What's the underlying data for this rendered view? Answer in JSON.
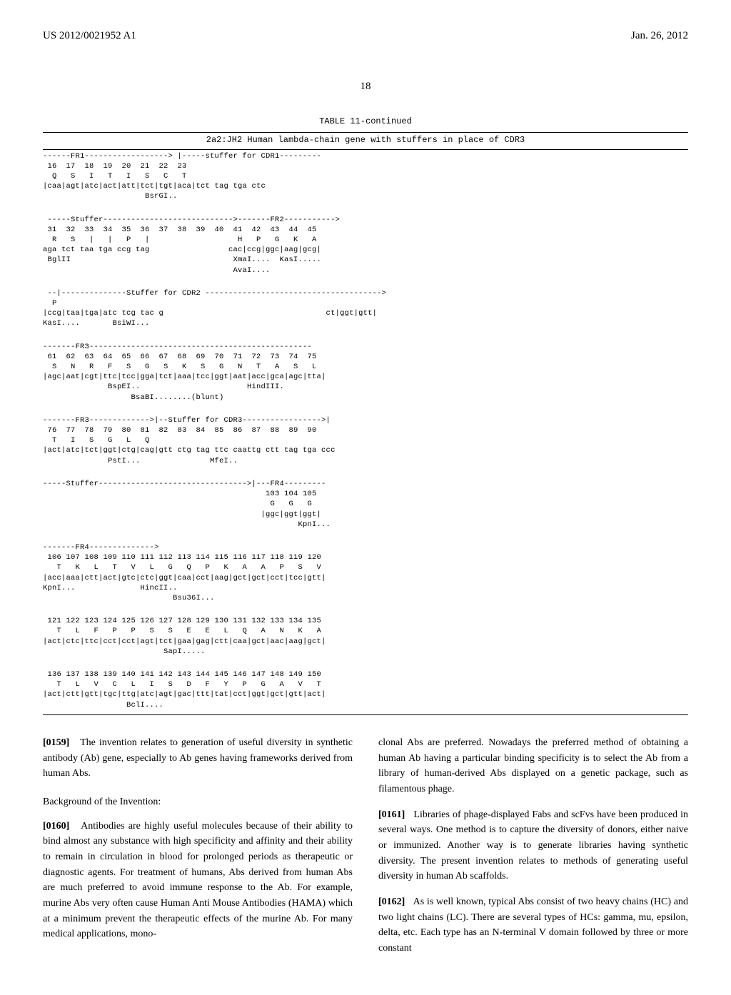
{
  "header": {
    "pub_number": "US 2012/0021952 A1",
    "pub_date": "Jan. 26, 2012"
  },
  "page_number": "18",
  "table": {
    "caption": "TABLE 11-continued",
    "subtitle": "2a2:JH2 Human lambda-chain gene with stuffers in place of CDR3"
  },
  "seq_blocks": [
    "------FR1------------------> |-----stuffer for CDR1---------\n 16  17  18  19  20  21  22  23\n  Q   S   I   T   I   S   C   T\n|caa|agt|atc|act|att|tct|tgt|aca|tct tag tga ctc\n                      BsrGI..",
    " -----Stuffer---------------------------->-------FR2----------->\n 31  32  33  34  35  36  37  38  39  40  41  42  43  44  45\n  R   S   |   |   P   |                   H   P   G   K   A\naga tct taa tga ccg tag                 cac|ccg|ggc|aag|gcg|\n BglII                                   XmaI....  KasI.....\n                                         AvaI....",
    " --|--------------Stuffer for CDR2 -------------------------------------->\n  P\n|ccg|taa|tga|atc tcg tac g                                   ct|ggt|gtt|\nKasI....       BsiWI...",
    "-------FR3------------------------------------------------\n 61  62  63  64  65  66  67  68  69  70  71  72  73  74  75\n  S   N   R   F   S   G   S   K   S   G   N   T   A   S   L\n|agc|aat|cgt|ttc|tcc|gga|tct|aaa|tcc|ggt|aat|acc|gca|agc|tta|\n              BspEI..                       HindIII.\n                   BsaBI........(blunt)",
    "-------FR3------------->|--Stuffer for CDR3----------------->|\n 76  77  78  79  80  81  82  83  84  85  86  87  88  89  90\n  T   I   S   G   L   Q\n|act|atc|tct|ggt|ctg|cag|gtt ctg tag ttc caattg ctt tag tga ccc\n              PstI...               MfeI..",
    "-----Stuffer-------------------------------->|---FR4---------\n                                                103 104 105\n                                                 G   G   G\n                                               |ggc|ggt|ggt|\n                                                       KpnI...",
    "-------FR4-------------->\n 106 107 108 109 110 111 112 113 114 115 116 117 118 119 120\n   T   K   L   T   V   L   G   Q   P   K   A   A   P   S   V\n|acc|aaa|ctt|act|gtc|ctc|ggt|caa|cct|aag|gct|gct|cct|tcc|gtt|\nKpnI...              HincII..\n                            Bsu36I...",
    " 121 122 123 124 125 126 127 128 129 130 131 132 133 134 135\n   T   L   F   P   P   S   S   E   E   L   Q   A   N   K   A\n|act|ctc|ttc|cct|cct|agt|tct|gaa|gag|ctt|caa|gct|aac|aag|gct|\n                          SapI.....",
    " 136 137 138 139 140 141 142 143 144 145 146 147 148 149 150\n   T   L   V   C   L   I   S   D   F   Y   P   G   A   V   T\n|act|ctt|gtt|tgc|ttg|atc|agt|gac|ttt|tat|cct|ggt|gct|gtt|act|\n                  BclI...."
  ],
  "left_column": {
    "p159_num": "[0159]",
    "p159": "   The invention relates to generation of useful diversity in synthetic antibody (Ab) gene, especially to Ab genes having frameworks derived from human Abs.",
    "bg_heading": "Background of the Invention:",
    "p160_num": "[0160]",
    "p160": "   Antibodies are highly useful molecules because of their ability to bind almost any substance with high specificity and affinity and their ability to remain in circulation in blood for prolonged periods as therapeutic or diagnostic agents. For treatment of humans, Abs derived from human Abs are much preferred to avoid immune response to the Ab. For example, murine Abs very often cause Human Anti Mouse Antibodies (HAMA) which at a minimum prevent the therapeutic effects of the murine Ab. For many medical applications, mono-"
  },
  "right_column": {
    "cont": "clonal Abs are preferred. Nowadays the preferred method of obtaining a human Ab having a particular binding specificity is to select the Ab from a library of human-derived Abs displayed on a genetic package, such as filamentous phage.",
    "p161_num": "[0161]",
    "p161": "   Libraries of phage-displayed Fabs and scFvs have been produced in several ways. One method is to capture the diversity of donors, either naive or immunized. Another way is to generate libraries having synthetic diversity. The present invention relates to methods of generating useful diversity in human Ab scaffolds.",
    "p162_num": "[0162]",
    "p162": "   As is well known, typical Abs consist of two heavy chains (HC) and two light chains (LC). There are several types of HCs: gamma, mu, epsilon, delta, etc. Each type has an N-terminal V domain followed by three or more constant"
  }
}
